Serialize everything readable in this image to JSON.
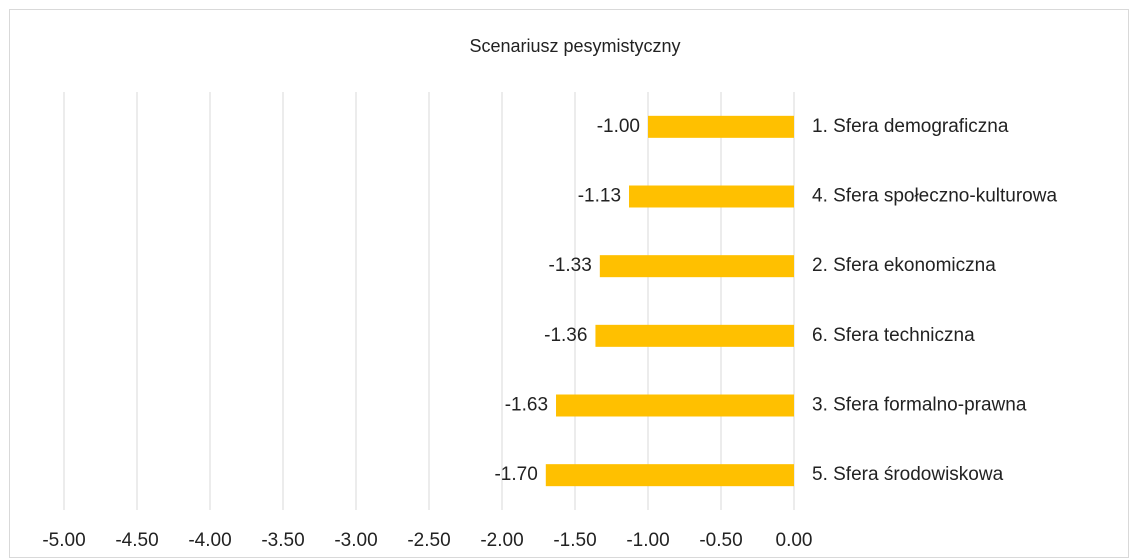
{
  "chart_data": {
    "type": "bar",
    "orientation": "horizontal",
    "title": "Scenariusz pesymistyczny",
    "categories": [
      "1. Sfera demograficzna",
      "4. Sfera społeczno-kulturowa",
      "2. Sfera ekonomiczna",
      "6. Sfera techniczna",
      "3. Sfera formalno-prawna",
      "5. Sfera środowiskowa"
    ],
    "values": [
      -1.0,
      -1.13,
      -1.33,
      -1.36,
      -1.63,
      -1.7
    ],
    "value_labels": [
      "-1.00",
      "-1.13",
      "-1.33",
      "-1.36",
      "-1.63",
      "-1.70"
    ],
    "color": "#ffc000",
    "xlim": [
      -5,
      0
    ],
    "xticks": [
      {
        "value": -5,
        "label": "-5.00"
      },
      {
        "value": -4.5,
        "label": "-4.50"
      },
      {
        "value": -4,
        "label": "-4.00"
      },
      {
        "value": -3.5,
        "label": "-3.50"
      },
      {
        "value": -3,
        "label": "-3.00"
      },
      {
        "value": -2.5,
        "label": "-2.50"
      },
      {
        "value": -2,
        "label": "-2.00"
      },
      {
        "value": -1.5,
        "label": "-1.50"
      },
      {
        "value": -1,
        "label": "-1.00"
      },
      {
        "value": -0.5,
        "label": "-0.50"
      },
      {
        "value": 0,
        "label": "0.00"
      }
    ],
    "grid": true
  }
}
